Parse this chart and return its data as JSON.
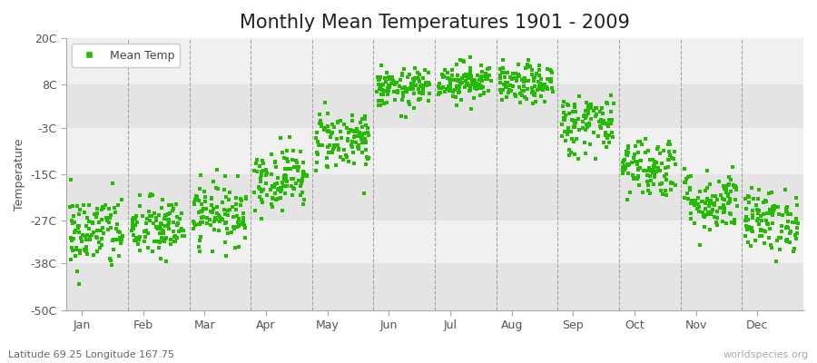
{
  "title": "Monthly Mean Temperatures 1901 - 2009",
  "ylabel": "Temperature",
  "subtitle": "Latitude 69.25 Longitude 167.75",
  "watermark": "worldspecies.org",
  "legend_label": "Mean Temp",
  "ylim": [
    -50,
    20
  ],
  "yticks": [
    20,
    8,
    -3,
    -15,
    -27,
    -38,
    -50
  ],
  "ytick_labels": [
    "20C",
    "8C",
    "-3C",
    "-15C",
    "-27C",
    "-38C",
    "-50C"
  ],
  "months": [
    "Jan",
    "Feb",
    "Mar",
    "Apr",
    "May",
    "Jun",
    "Jul",
    "Aug",
    "Sep",
    "Oct",
    "Nov",
    "Dec"
  ],
  "month_means": [
    -30,
    -29,
    -25,
    -16,
    -6,
    7,
    9,
    8,
    -2,
    -13,
    -22,
    -27
  ],
  "month_stds": [
    5,
    4,
    4,
    4,
    4,
    2.5,
    2.5,
    2.5,
    4,
    4,
    4,
    4
  ],
  "n_years": 109,
  "dot_color": "#22bb00",
  "dot_size": 5,
  "bg_color": "#ffffff",
  "plot_bg_light": "#f0f0f0",
  "plot_bg_dark": "#e4e4e4",
  "title_fontsize": 15,
  "label_fontsize": 9,
  "tick_fontsize": 9,
  "dashed_line_color": "#888888",
  "seed": 42
}
